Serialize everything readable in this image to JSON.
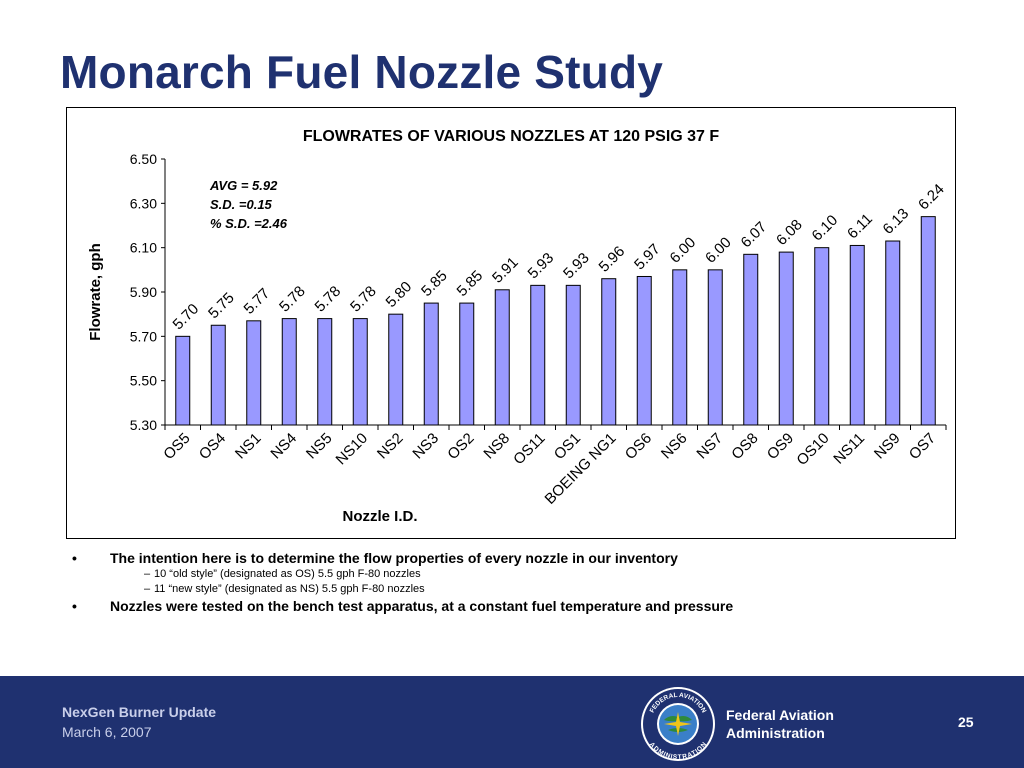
{
  "slide": {
    "title": "Monarch Fuel Nozzle Study"
  },
  "chart_data": {
    "type": "bar",
    "title": "FLOWRATES OF VARIOUS NOZZLES AT 120 PSIG 37 F",
    "xlabel": "Nozzle I.D.",
    "ylabel": "Flowrate, gph",
    "ylim": [
      5.3,
      6.5
    ],
    "yticks": [
      "5.30",
      "5.50",
      "5.70",
      "5.90",
      "6.10",
      "6.30",
      "6.50"
    ],
    "grid": false,
    "legend": "none",
    "bar_color": "#9999ff",
    "categories": [
      "OS5",
      "OS4",
      "NS1",
      "NS4",
      "NS5",
      "NS10",
      "NS2",
      "NS3",
      "OS2",
      "NS8",
      "OS11",
      "OS1",
      "BOEING NG1",
      "OS6",
      "NS6",
      "NS7",
      "OS8",
      "OS9",
      "OS10",
      "NS11",
      "NS9",
      "OS7"
    ],
    "values": [
      5.7,
      5.75,
      5.77,
      5.78,
      5.78,
      5.78,
      5.8,
      5.85,
      5.85,
      5.91,
      5.93,
      5.93,
      5.96,
      5.97,
      6.0,
      6.0,
      6.07,
      6.08,
      6.1,
      6.11,
      6.13,
      6.24
    ],
    "data_labels": [
      "5.70",
      "5.75",
      "5.77",
      "5.78",
      "5.78",
      "5.78",
      "5.80",
      "5.85",
      "5.85",
      "5.91",
      "5.93",
      "5.93",
      "5.96",
      "5.97",
      "6.00",
      "6.00",
      "6.07",
      "6.08",
      "6.10",
      "6.11",
      "6.13",
      "6.24"
    ],
    "annotations": [
      "AVG = 5.92",
      "S.D. =0.15",
      "% S.D. =2.46"
    ]
  },
  "bullets": {
    "b1": "The intention here is to determine the flow properties of every nozzle in our inventory",
    "b1_sub1": "10 “old style” (designated as OS) 5.5 gph F-80 nozzles",
    "b1_sub2": "11 “new style” (designated as NS) 5.5 gph F-80 nozzles",
    "b2": "Nozzles were tested on the bench test apparatus, at a constant fuel temperature and pressure",
    "marker_l1": "•",
    "marker_l2": "–"
  },
  "footer": {
    "title": "NexGen Burner Update",
    "date": "March 6, 2007",
    "agency_line1": "Federal Aviation",
    "agency_line2": "Administration",
    "page_number": "25",
    "seal_icon": "faa-seal-icon",
    "seal_text_top": "FEDERAL AVIATION",
    "seal_text_bottom": "ADMINISTRATION"
  },
  "colors": {
    "title": "#1f3170",
    "footer_bg": "#1f3170",
    "bar": "#9999ff"
  }
}
